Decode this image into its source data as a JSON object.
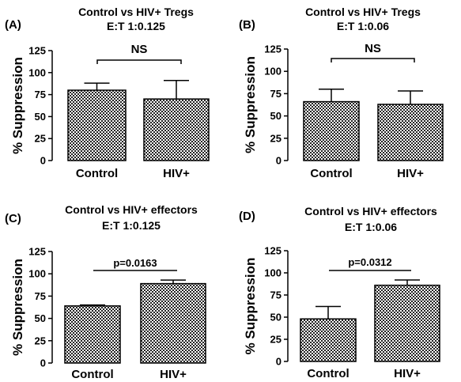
{
  "chart_data": [
    {
      "panel": "(A)",
      "type": "bar",
      "title": [
        "Control vs HIV+ Tregs",
        "E:T 1:0.125"
      ],
      "ylabel": "% Suppression",
      "ylim": [
        0,
        125
      ],
      "yticks": [
        0,
        25,
        50,
        75,
        100,
        125
      ],
      "categories": [
        "Control",
        "HIV+"
      ],
      "values": [
        80,
        70
      ],
      "errors": [
        8,
        21
      ],
      "annotation": "NS",
      "annotation_style": "bracket",
      "grid": false,
      "pattern": "checkered"
    },
    {
      "panel": "(B)",
      "type": "bar",
      "title": [
        "Control vs HIV+ Tregs",
        "E:T 1:0.06"
      ],
      "ylabel": "% Suppression",
      "ylim": [
        0,
        125
      ],
      "yticks": [
        0,
        25,
        50,
        75,
        100,
        125
      ],
      "categories": [
        "Control",
        "HIV+"
      ],
      "values": [
        66,
        63
      ],
      "errors": [
        14,
        15
      ],
      "annotation": "NS",
      "annotation_style": "bracket",
      "grid": false,
      "pattern": "checkered"
    },
    {
      "panel": "(C)",
      "type": "bar",
      "title": [
        "Control vs HIV+ effectors",
        "E:T 1:0.125"
      ],
      "ylabel": "% Suppression",
      "ylim": [
        0,
        125
      ],
      "yticks": [
        0,
        25,
        50,
        75,
        100,
        125
      ],
      "categories": [
        "Control",
        "HIV+"
      ],
      "values": [
        64,
        89
      ],
      "errors": [
        1,
        4
      ],
      "annotation": "p=0.0163",
      "annotation_style": "line",
      "grid": false,
      "pattern": "checkered"
    },
    {
      "panel": "(D)",
      "type": "bar",
      "title": [
        "Control vs HIV+ effectors",
        "E:T 1:0.06"
      ],
      "ylabel": "% Suppression",
      "ylim": [
        0,
        125
      ],
      "yticks": [
        0,
        25,
        50,
        75,
        100,
        125
      ],
      "categories": [
        "Control",
        "HIV+"
      ],
      "values": [
        48,
        86
      ],
      "errors": [
        14,
        6
      ],
      "annotation": "p=0.0312",
      "annotation_style": "line",
      "grid": false,
      "pattern": "checkered"
    }
  ]
}
